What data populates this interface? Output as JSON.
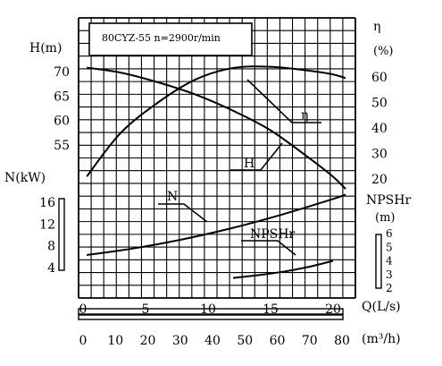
{
  "chart_data": {
    "type": "line",
    "title": "80CYZ-55 n=2900r/min",
    "x_axis": {
      "label": "Q(L/s)",
      "range": [
        0,
        22
      ],
      "ticks": [
        "0",
        "5",
        "10",
        "15",
        "20"
      ],
      "tick_values": [
        0,
        5,
        10,
        15,
        20
      ]
    },
    "x_axis_secondary": {
      "label": "(m³/h)",
      "range": [
        0,
        80
      ],
      "ticks": [
        "0",
        "10",
        "20",
        "30",
        "40",
        "50",
        "60",
        "70",
        "80"
      ],
      "tick_values": [
        0,
        10,
        20,
        30,
        40,
        50,
        60,
        70,
        80
      ]
    },
    "y_axes": {
      "H": {
        "label": "H(m)",
        "ticks": [
          "70",
          "65",
          "60",
          "55"
        ],
        "tick_values": [
          70,
          65,
          60,
          55
        ]
      },
      "N": {
        "label": "N(kW)",
        "ticks": [
          "16",
          "12",
          "8",
          "4"
        ],
        "tick_values": [
          16,
          12,
          8,
          4
        ]
      },
      "eta": {
        "label_symbol": "η",
        "label_unit": "(%)",
        "ticks": [
          "60",
          "50",
          "40",
          "30",
          "20"
        ],
        "tick_values": [
          60,
          50,
          40,
          30,
          20
        ]
      },
      "npsh": {
        "label": "NPSHr",
        "unit": "(m)",
        "ticks": [
          "6",
          "5",
          "4",
          "3",
          "2"
        ],
        "tick_values": [
          6,
          5,
          4,
          3,
          2
        ]
      }
    },
    "curve_labels": {
      "eta": "η",
      "H": "H",
      "N": "N",
      "npsh": "NPSHr"
    },
    "series": [
      {
        "key": "H",
        "x": [
          0.3,
          3,
          6,
          9,
          12,
          15,
          18,
          20,
          21
        ],
        "y": [
          70.8,
          69.8,
          67.8,
          65.3,
          62.0,
          58.0,
          52.5,
          48.5,
          46.0
        ]
      },
      {
        "key": "eta",
        "x": [
          0.3,
          3,
          6,
          9,
          12,
          15,
          18,
          20,
          21
        ],
        "y": [
          21,
          38,
          50,
          59,
          63.5,
          64,
          62.5,
          61,
          59.5
        ]
      },
      {
        "key": "N",
        "x": [
          0.3,
          4,
          8,
          12,
          16,
          20,
          21
        ],
        "y": [
          6.3,
          7.5,
          9.2,
          11.3,
          13.8,
          16.6,
          17.4
        ]
      },
      {
        "key": "npsh",
        "x": [
          12,
          14,
          16,
          18,
          20
        ],
        "y": [
          2.75,
          2.95,
          3.2,
          3.55,
          4.0
        ]
      }
    ],
    "grid": true
  }
}
